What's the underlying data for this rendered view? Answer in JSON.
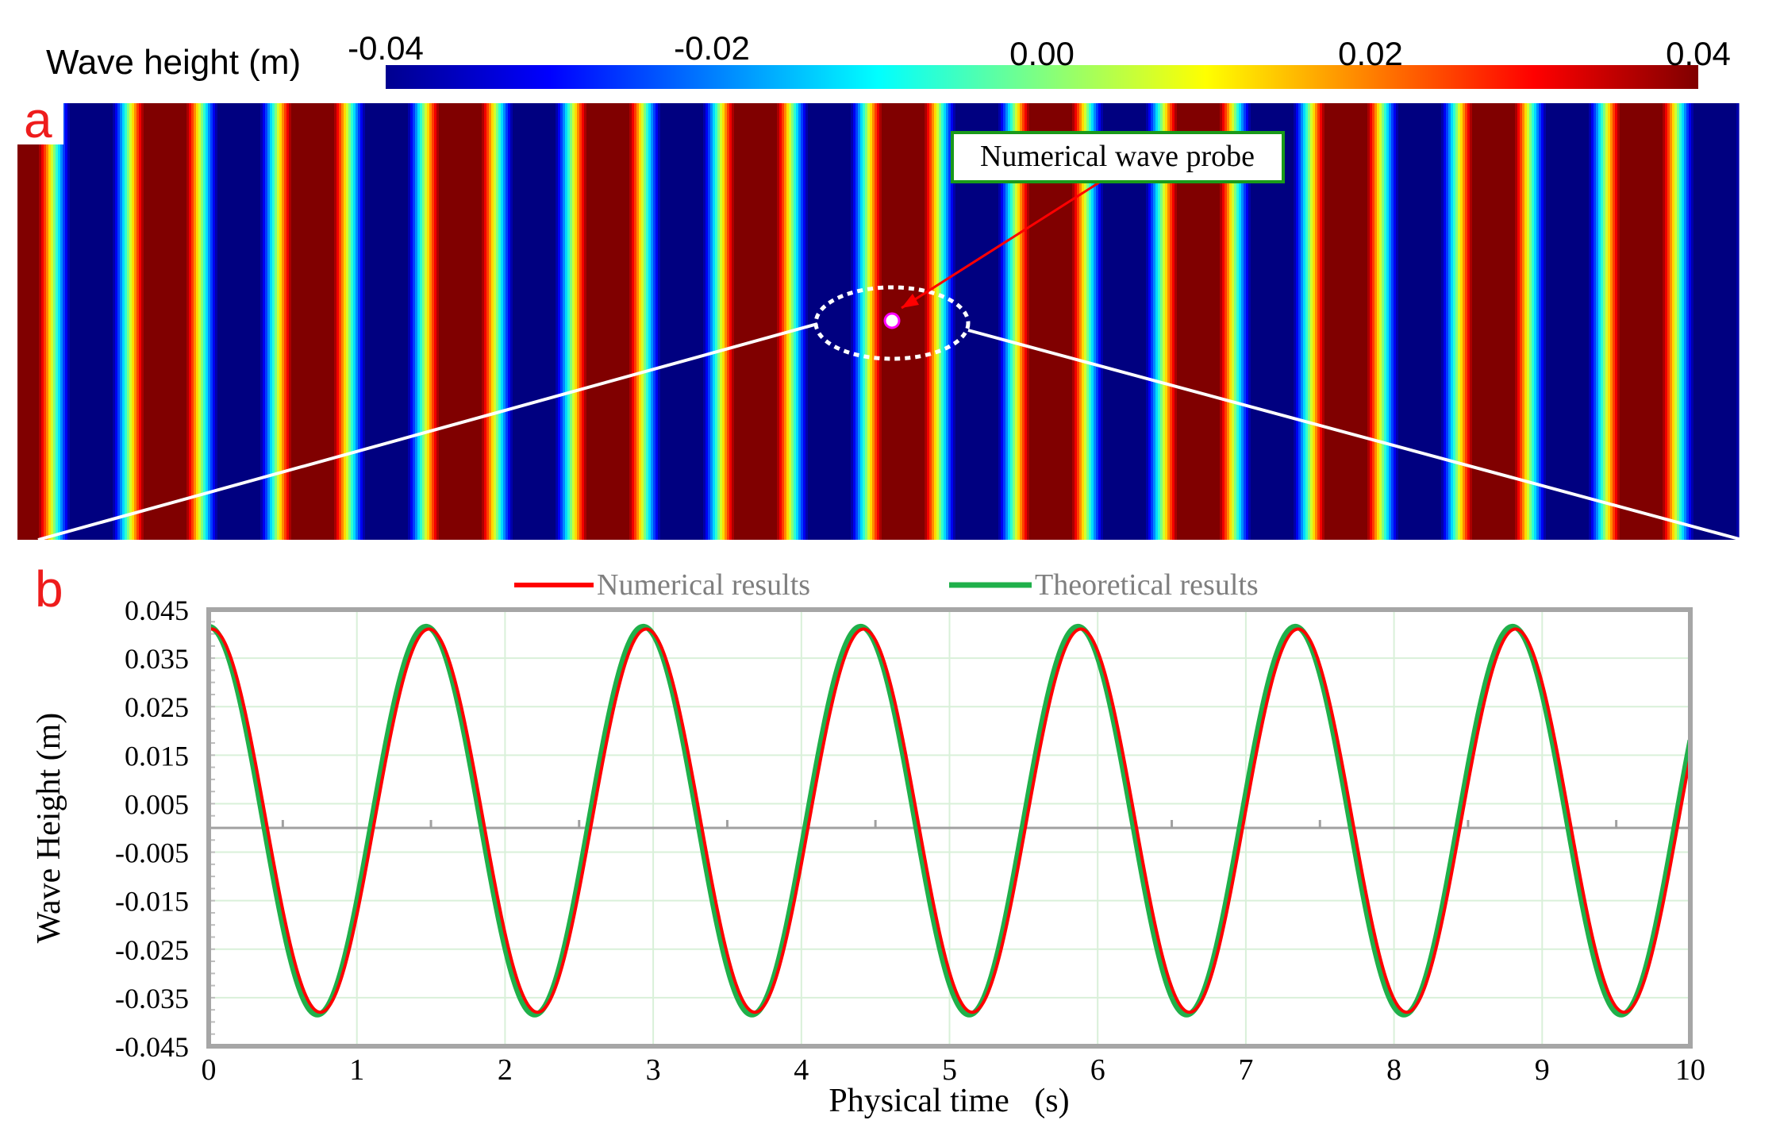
{
  "colorbar": {
    "label": "Wave height (m)",
    "ticks": [
      "-0.04",
      "-0.02",
      "0.00",
      "0.02",
      "0.04"
    ],
    "stops": [
      "#00008f",
      "#0000ff",
      "#0080ff",
      "#00ffff",
      "#80ff80",
      "#ffff00",
      "#ff8000",
      "#ff0000",
      "#800000"
    ]
  },
  "panel_a": {
    "letter": "a",
    "probe_label": "Numerical wave probe",
    "probe_color": "#ff00ff",
    "arrow_color": "#ff0000",
    "callout_border": "#1a9a1a"
  },
  "chart_data": {
    "letter": "b",
    "type": "line",
    "title": "",
    "xlabel": "Physical time   (s)",
    "ylabel": "Wave Height (m)",
    "xlim": [
      0,
      10
    ],
    "ylim": [
      -0.045,
      0.045
    ],
    "xticks": [
      "0",
      "1",
      "2",
      "3",
      "4",
      "5",
      "6",
      "7",
      "8",
      "9",
      "10"
    ],
    "yticks": [
      "0.045",
      "0.035",
      "0.025",
      "0.015",
      "0.005",
      "-0.005",
      "-0.015",
      "-0.025",
      "-0.035",
      "-0.045"
    ],
    "grid": true,
    "legend_position": "top-center",
    "series": [
      {
        "name": "Numerical results",
        "color": "#ff0000",
        "offset": 0.0015,
        "amplitude": 0.0395,
        "period": 1.4667,
        "phase": 0.02
      },
      {
        "name": "Theoretical results",
        "color": "#1fb04a",
        "offset": 0.0015,
        "amplitude": 0.04,
        "period": 1.4667,
        "phase": 0.0
      }
    ],
    "x": [
      0,
      0.25,
      0.5,
      0.75,
      1,
      1.25,
      1.5,
      1.75,
      2,
      2.25,
      2.5,
      2.75,
      3,
      3.25,
      3.5,
      3.75,
      4,
      4.25,
      4.5,
      4.75,
      5,
      5.25,
      5.5,
      5.75,
      6,
      6.25,
      6.5,
      6.75,
      7,
      7.25,
      7.5,
      7.75,
      8,
      8.25,
      8.5,
      8.75,
      9,
      9.25,
      9.5,
      9.75,
      10
    ]
  }
}
